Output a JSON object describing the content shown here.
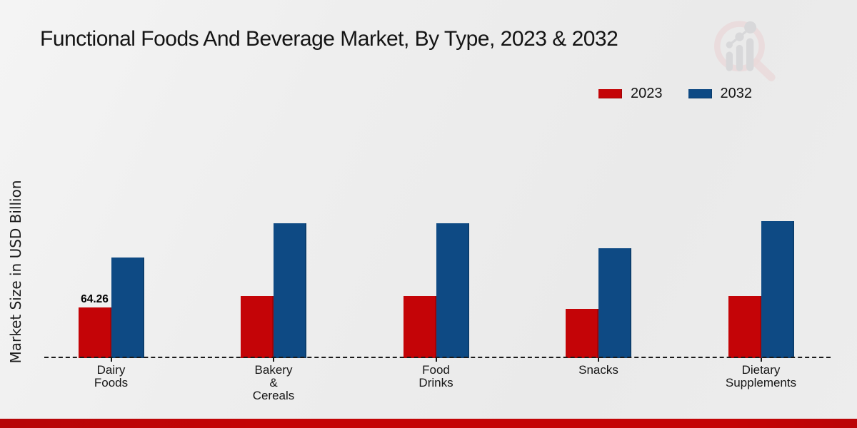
{
  "title": "Functional Foods And Beverage Market, By Type, 2023 & 2032",
  "y_axis_label": "Market Size in USD Billion",
  "annotation": {
    "value_label": "64.26",
    "category": "Dairy Foods",
    "series": "2023"
  },
  "colors": {
    "series_2023": "#c40407",
    "series_2032": "#0e4a84",
    "baseline": "#1a1a1a",
    "bottom_strip": "#c40406",
    "watermark_pink": "#e9c6c7",
    "watermark_gray": "#c8c8cc"
  },
  "watermark_icon": "magnifier-bar-chart-logo",
  "chart_data": {
    "type": "bar",
    "categories": [
      "Dairy Foods",
      "Bakery & Cereals",
      "Food Drinks",
      "Snacks",
      "Dietary Supplements"
    ],
    "categories_display": [
      [
        "Dairy",
        "Foods"
      ],
      [
        "Bakery",
        "&",
        "Cereals"
      ],
      [
        "Food",
        "Drinks"
      ],
      [
        "Snacks"
      ],
      [
        "Dietary",
        "Supplements"
      ]
    ],
    "series": [
      {
        "name": "2023",
        "color": "#c40407",
        "values": [
          64.26,
          78.0,
          78.7,
          62.0,
          78.4
        ]
      },
      {
        "name": "2032",
        "color": "#0e4a84",
        "values": [
          127.1,
          170.4,
          170.4,
          138.8,
          172.8
        ]
      }
    ],
    "title": "Functional Foods And Beverage Market, By Type, 2023 & 2032",
    "xlabel": "",
    "ylabel": "Market Size in USD Billion",
    "ylim": [
      0,
      200
    ],
    "grid": false,
    "y_ticks_visible": false,
    "legend_position": "top-right",
    "baseline_style": "dashed",
    "data_labels": [
      {
        "series": "2023",
        "category_index": 0,
        "text": "64.26"
      }
    ]
  }
}
